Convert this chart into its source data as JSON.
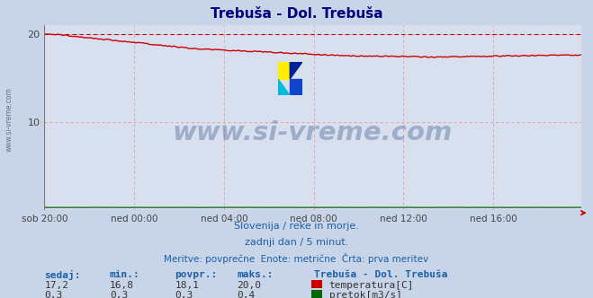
{
  "title": "Trebuša - Dol. Trebuša",
  "title_color": "#000080",
  "bg_color": "#c8d4e8",
  "plot_bg_color": "#d8e0f0",
  "grid_color": "#e8a0a0",
  "watermark_text": "www.si-vreme.com",
  "watermark_color": "#1a3a6e",
  "watermark_alpha": 0.3,
  "x_labels": [
    "sob 20:00",
    "ned 00:00",
    "ned 04:00",
    "ned 08:00",
    "ned 12:00",
    "ned 16:00"
  ],
  "x_ticks_pos": [
    0,
    48,
    96,
    144,
    192,
    240
  ],
  "total_points": 288,
  "ylim": [
    0,
    21
  ],
  "yticks": [
    10,
    20
  ],
  "temp_color": "#cc0000",
  "temp_dashed_color": "#cc0000",
  "flow_color": "#006600",
  "axis_arrow_color": "#cc0000",
  "label_color": "#1a5fa8",
  "info_line1": "Slovenija / reke in morje.",
  "info_line2": "zadnji dan / 5 minut.",
  "info_line3": "Meritve: povprečne  Enote: metrične  Črta: prva meritev",
  "legend_title": "Trebuša - Dol. Trebuša",
  "col_headers": [
    "sedaj:",
    "min.:",
    "povpr.:",
    "maks.:"
  ],
  "temp_row": [
    "17,2",
    "16,8",
    "18,1",
    "20,0"
  ],
  "flow_row": [
    "0,3",
    "0,3",
    "0,3",
    "0,4"
  ],
  "icon_colors": [
    "#ffee00",
    "#00aacc",
    "#1144cc",
    "#002288"
  ],
  "left_watermark": "www.si-vreme.com"
}
